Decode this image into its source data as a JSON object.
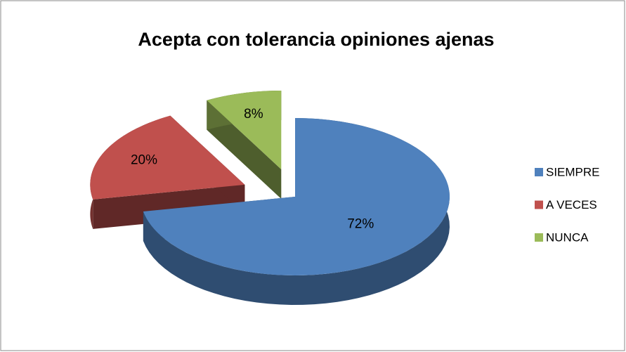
{
  "chart_data": {
    "type": "pie",
    "title": "Acepta con tolerancia opiniones ajenas",
    "categories": [
      "SIEMPRE",
      "A VECES",
      "NUNCA"
    ],
    "values": [
      72,
      20,
      8
    ],
    "value_labels": [
      "72%",
      "20%",
      "8%"
    ],
    "colors": [
      "#4f81bd",
      "#c0504d",
      "#9bbb59"
    ],
    "legend": "right"
  }
}
